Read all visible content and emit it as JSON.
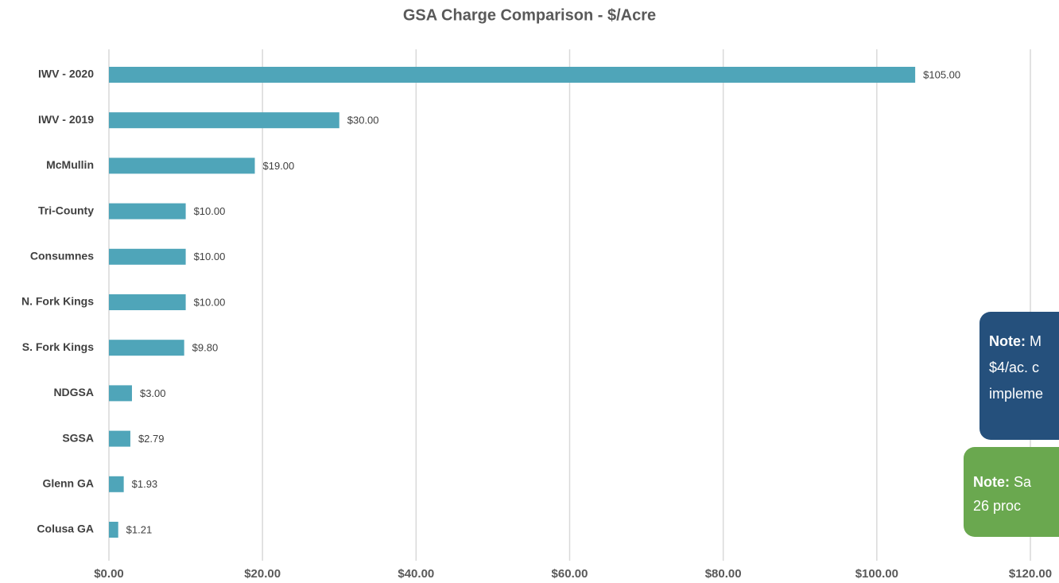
{
  "chart_data": {
    "type": "hbar",
    "title": "GSA Charge Comparison - $/Acre",
    "categories": [
      "IWV - 2020",
      "IWV - 2019",
      "McMullin",
      "Tri-County",
      "Consumnes",
      "N. Fork Kings",
      "S. Fork Kings",
      "NDGSA",
      "SGSA",
      "Glenn GA",
      "Colusa GA"
    ],
    "values": [
      105,
      30,
      19,
      10,
      10,
      10,
      9.8,
      3,
      2.79,
      1.93,
      1.21
    ],
    "value_labels": [
      "$105.00",
      "$30.00",
      "$19.00",
      "$10.00",
      "$10.00",
      "$10.00",
      "$9.80",
      "$3.00",
      "$2.79",
      "$1.93",
      "$1.21"
    ],
    "color": "#4fa5b9",
    "xlim": [
      0,
      120
    ],
    "xticks": [
      {
        "value": 0,
        "label": "$0.00"
      },
      {
        "value": 20,
        "label": "$20.00"
      },
      {
        "value": 40,
        "label": "$40.00"
      },
      {
        "value": 60,
        "label": "$60.00"
      },
      {
        "value": 80,
        "label": "$80.00"
      },
      {
        "value": 100,
        "label": "$100.00"
      },
      {
        "value": 120,
        "label": "$120.00"
      }
    ],
    "grid": true,
    "annotations": [
      {
        "label": "Note:",
        "lines": [
          " M",
          "$4/ac. c",
          "impleme"
        ],
        "color": "#25507c"
      },
      {
        "label": "Note:",
        "lines": [
          " Sa",
          "26 proc"
        ],
        "color": "#6aa84f"
      }
    ]
  }
}
